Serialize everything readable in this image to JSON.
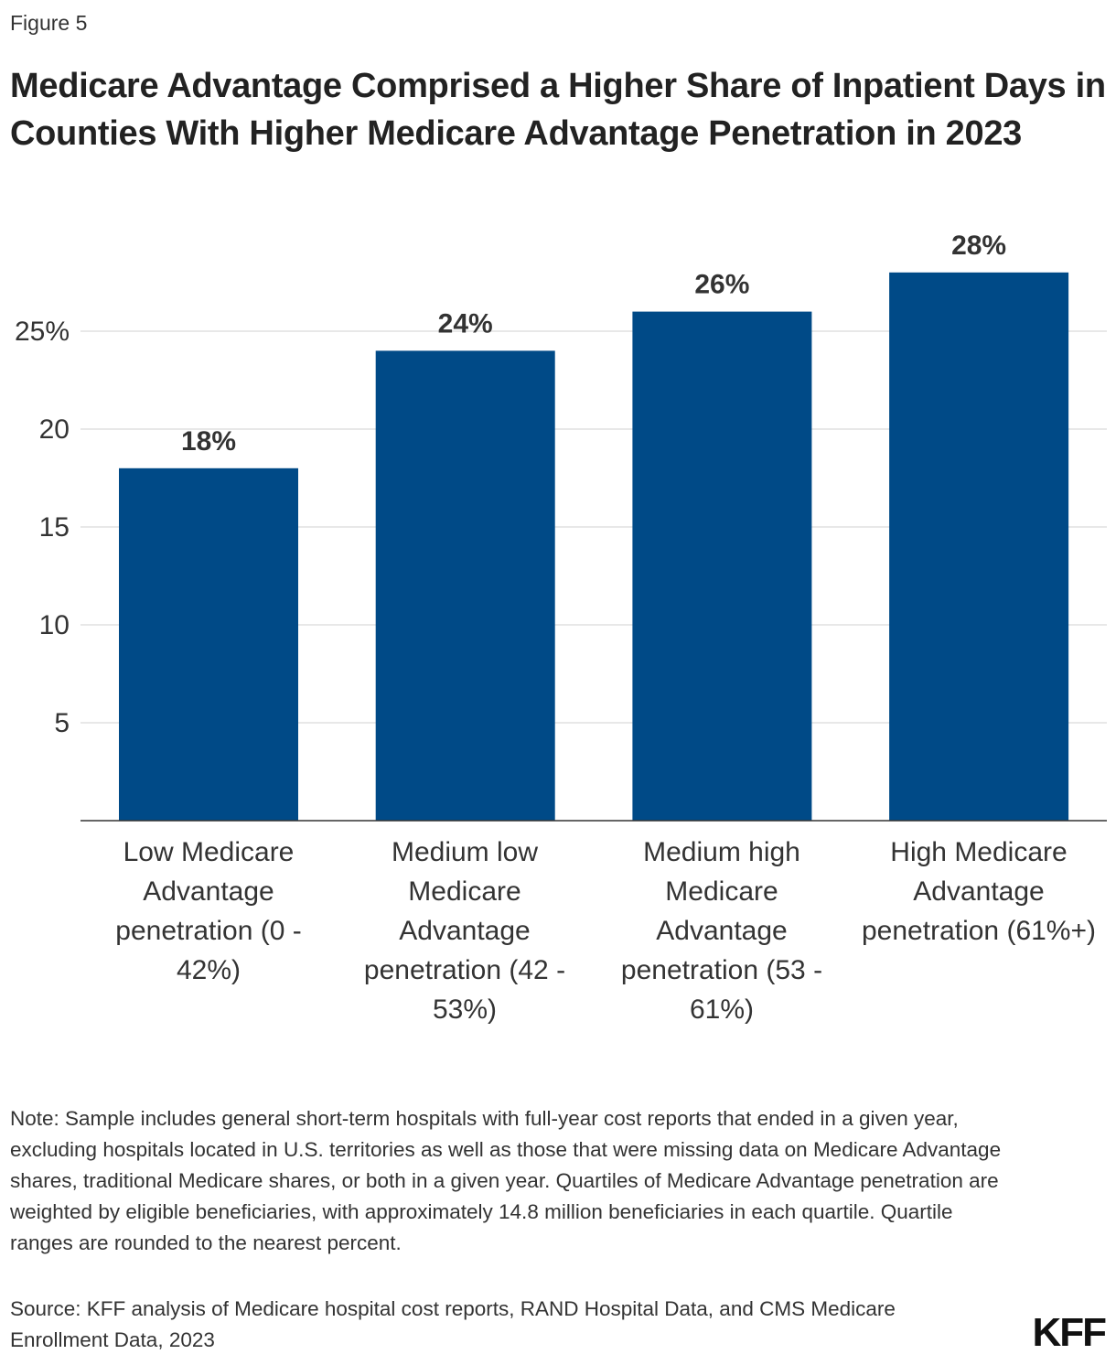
{
  "figure_label": "Figure 5",
  "title": "Medicare Advantage Comprised a Higher Share of Inpatient Days in Counties With Higher Medicare Advantage Penetration in 2023",
  "chart_data": {
    "type": "bar",
    "categories": [
      "Low Medicare Advantage penetration (0 - 42%)",
      "Medium low Medicare Advantage penetration (42 - 53%)",
      "Medium high Medicare Advantage penetration (53 - 61%)",
      "High Medicare Advantage penetration (61%+)"
    ],
    "values": [
      18,
      24,
      26,
      28
    ],
    "data_labels": [
      "18%",
      "24%",
      "26%",
      "28%"
    ],
    "yticks": [
      5,
      10,
      15,
      20,
      25
    ],
    "ytick_labels": [
      "5",
      "10",
      "15",
      "20",
      "25%"
    ],
    "ylim": [
      0,
      28
    ],
    "grid": true,
    "bar_color": "#004a87",
    "xlabel": "",
    "ylabel": ""
  },
  "note": "Note:  Sample includes general short-term hospitals with full-year cost reports that ended in a given year, excluding hospitals located in U.S. territories as well as those that were missing data on Medicare Advantage shares, traditional Medicare shares, or both in a given year. Quartiles of Medicare Advantage penetration are weighted by eligible beneficiaries, with approximately 14.8 million beneficiaries in each quartile. Quartile ranges are rounded to the nearest percent.",
  "source": "Source: KFF analysis of Medicare hospital cost reports, RAND Hospital Data, and CMS Medicare Enrollment Data, 2023",
  "logo": "KFF"
}
